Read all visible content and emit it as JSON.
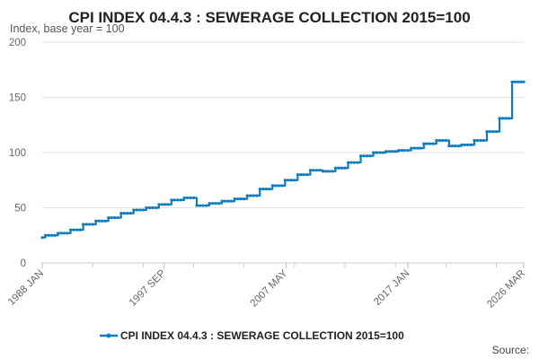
{
  "chart_data": {
    "type": "line",
    "title": "CPI INDEX 04.4.3 : SEWERAGE COLLECTION 2015=100",
    "subtitle": "Index, base year = 100",
    "source_label": "Source:",
    "xlabel": "",
    "ylabel": "Index, base year = 100",
    "ylim": [
      0,
      200
    ],
    "yticks": [
      0,
      50,
      100,
      150,
      200
    ],
    "x_tick_labels": [
      {
        "label": "1988 JAN",
        "year": 1988.0
      },
      {
        "label": "1997 SEP",
        "year": 1997.67
      },
      {
        "label": "2007 MAY",
        "year": 2007.33
      },
      {
        "label": "2017 JAN",
        "year": 2017.0
      },
      {
        "label": "2026 MAR",
        "year": 2026.17
      }
    ],
    "x_range": [
      1988.0,
      2026.17
    ],
    "series": [
      {
        "name": "CPI INDEX 04.4.3 : SEWERAGE COLLECTION 2015=100",
        "color": "#0f7cbd",
        "steps": [
          [
            1988.0,
            23
          ],
          [
            1988.25,
            25
          ],
          [
            1989.25,
            27
          ],
          [
            1990.25,
            30
          ],
          [
            1991.25,
            35
          ],
          [
            1992.25,
            38
          ],
          [
            1993.25,
            41
          ],
          [
            1994.25,
            45
          ],
          [
            1995.25,
            48
          ],
          [
            1996.25,
            50
          ],
          [
            1997.25,
            53
          ],
          [
            1998.25,
            57
          ],
          [
            1999.25,
            59
          ],
          [
            2000.25,
            52
          ],
          [
            2001.25,
            54
          ],
          [
            2002.25,
            56
          ],
          [
            2003.25,
            58
          ],
          [
            2004.25,
            61
          ],
          [
            2005.25,
            67
          ],
          [
            2006.25,
            70
          ],
          [
            2007.25,
            75
          ],
          [
            2008.25,
            80
          ],
          [
            2009.25,
            84
          ],
          [
            2010.25,
            83
          ],
          [
            2011.25,
            86
          ],
          [
            2012.25,
            91
          ],
          [
            2013.25,
            97
          ],
          [
            2014.25,
            100
          ],
          [
            2015.25,
            101
          ],
          [
            2016.25,
            102
          ],
          [
            2017.25,
            104
          ],
          [
            2018.25,
            108
          ],
          [
            2019.25,
            111
          ],
          [
            2020.25,
            106
          ],
          [
            2021.25,
            107
          ],
          [
            2022.25,
            111
          ],
          [
            2023.25,
            119
          ],
          [
            2024.25,
            131
          ],
          [
            2025.25,
            164
          ],
          [
            2026.17,
            164
          ]
        ]
      }
    ],
    "grid": true,
    "legend_position": "bottom-center"
  }
}
